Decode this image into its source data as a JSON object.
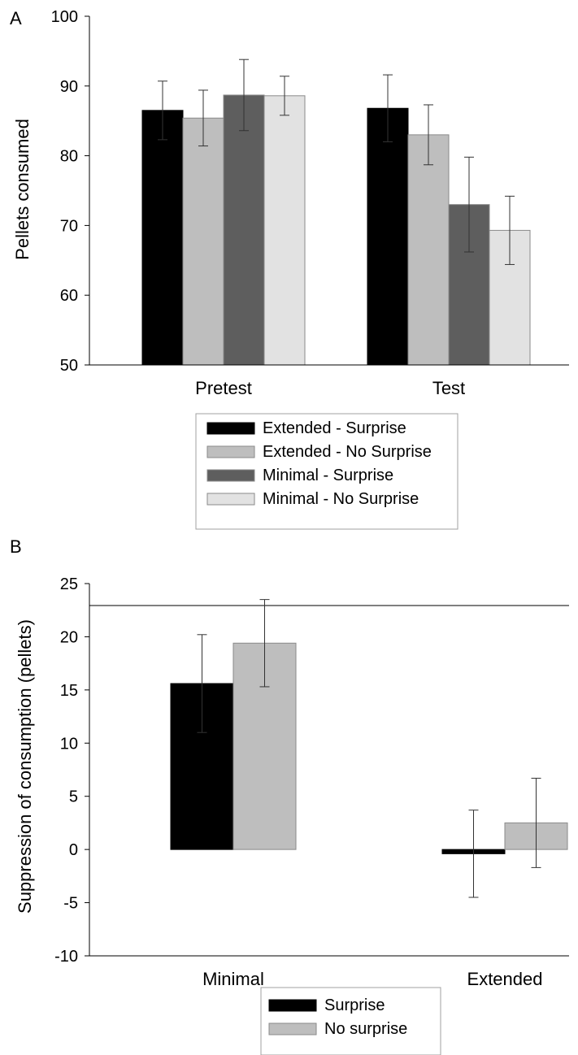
{
  "chart_data": [
    {
      "panel": "A",
      "type": "bar",
      "ylabel": "Pellets consumed",
      "xlabel": "",
      "ylim": [
        50,
        100
      ],
      "yticks": [
        "100",
        "90",
        "80",
        "70",
        "60",
        "50"
      ],
      "categories": [
        "Pretest",
        "Test"
      ],
      "series": [
        {
          "name": "Extended - Surprise",
          "color": "#000000",
          "values": [
            86.5,
            86.8
          ],
          "errors": [
            4.2,
            4.8
          ]
        },
        {
          "name": "Extended - No Surprise",
          "color": "#bebebe",
          "values": [
            85.4,
            83.0
          ],
          "errors": [
            4.0,
            4.3
          ]
        },
        {
          "name": "Minimal - Surprise",
          "color": "#5e5e5e",
          "values": [
            88.7,
            73.0
          ],
          "errors": [
            5.1,
            6.8
          ]
        },
        {
          "name": "Minimal - No Surprise",
          "color": "#e2e2e2",
          "values": [
            88.6,
            69.3
          ],
          "errors": [
            2.8,
            4.9
          ]
        }
      ],
      "legend": "below"
    },
    {
      "panel": "B",
      "type": "bar",
      "ylabel": "Suppression of consumption (pellets)",
      "xlabel": "",
      "ylim": [
        -10,
        25
      ],
      "yticks": [
        "25",
        "20",
        "15",
        "10",
        "5",
        "0",
        "-5",
        "-10"
      ],
      "categories": [
        "Minimal",
        "Extended"
      ],
      "series": [
        {
          "name": "Surprise",
          "color": "#000000",
          "values": [
            15.6,
            -0.4
          ],
          "errors": [
            4.6,
            4.1
          ]
        },
        {
          "name": "No surprise",
          "color": "#bebebe",
          "values": [
            19.4,
            2.5
          ],
          "errors": [
            4.1,
            4.2
          ]
        }
      ],
      "legend": "below"
    }
  ]
}
